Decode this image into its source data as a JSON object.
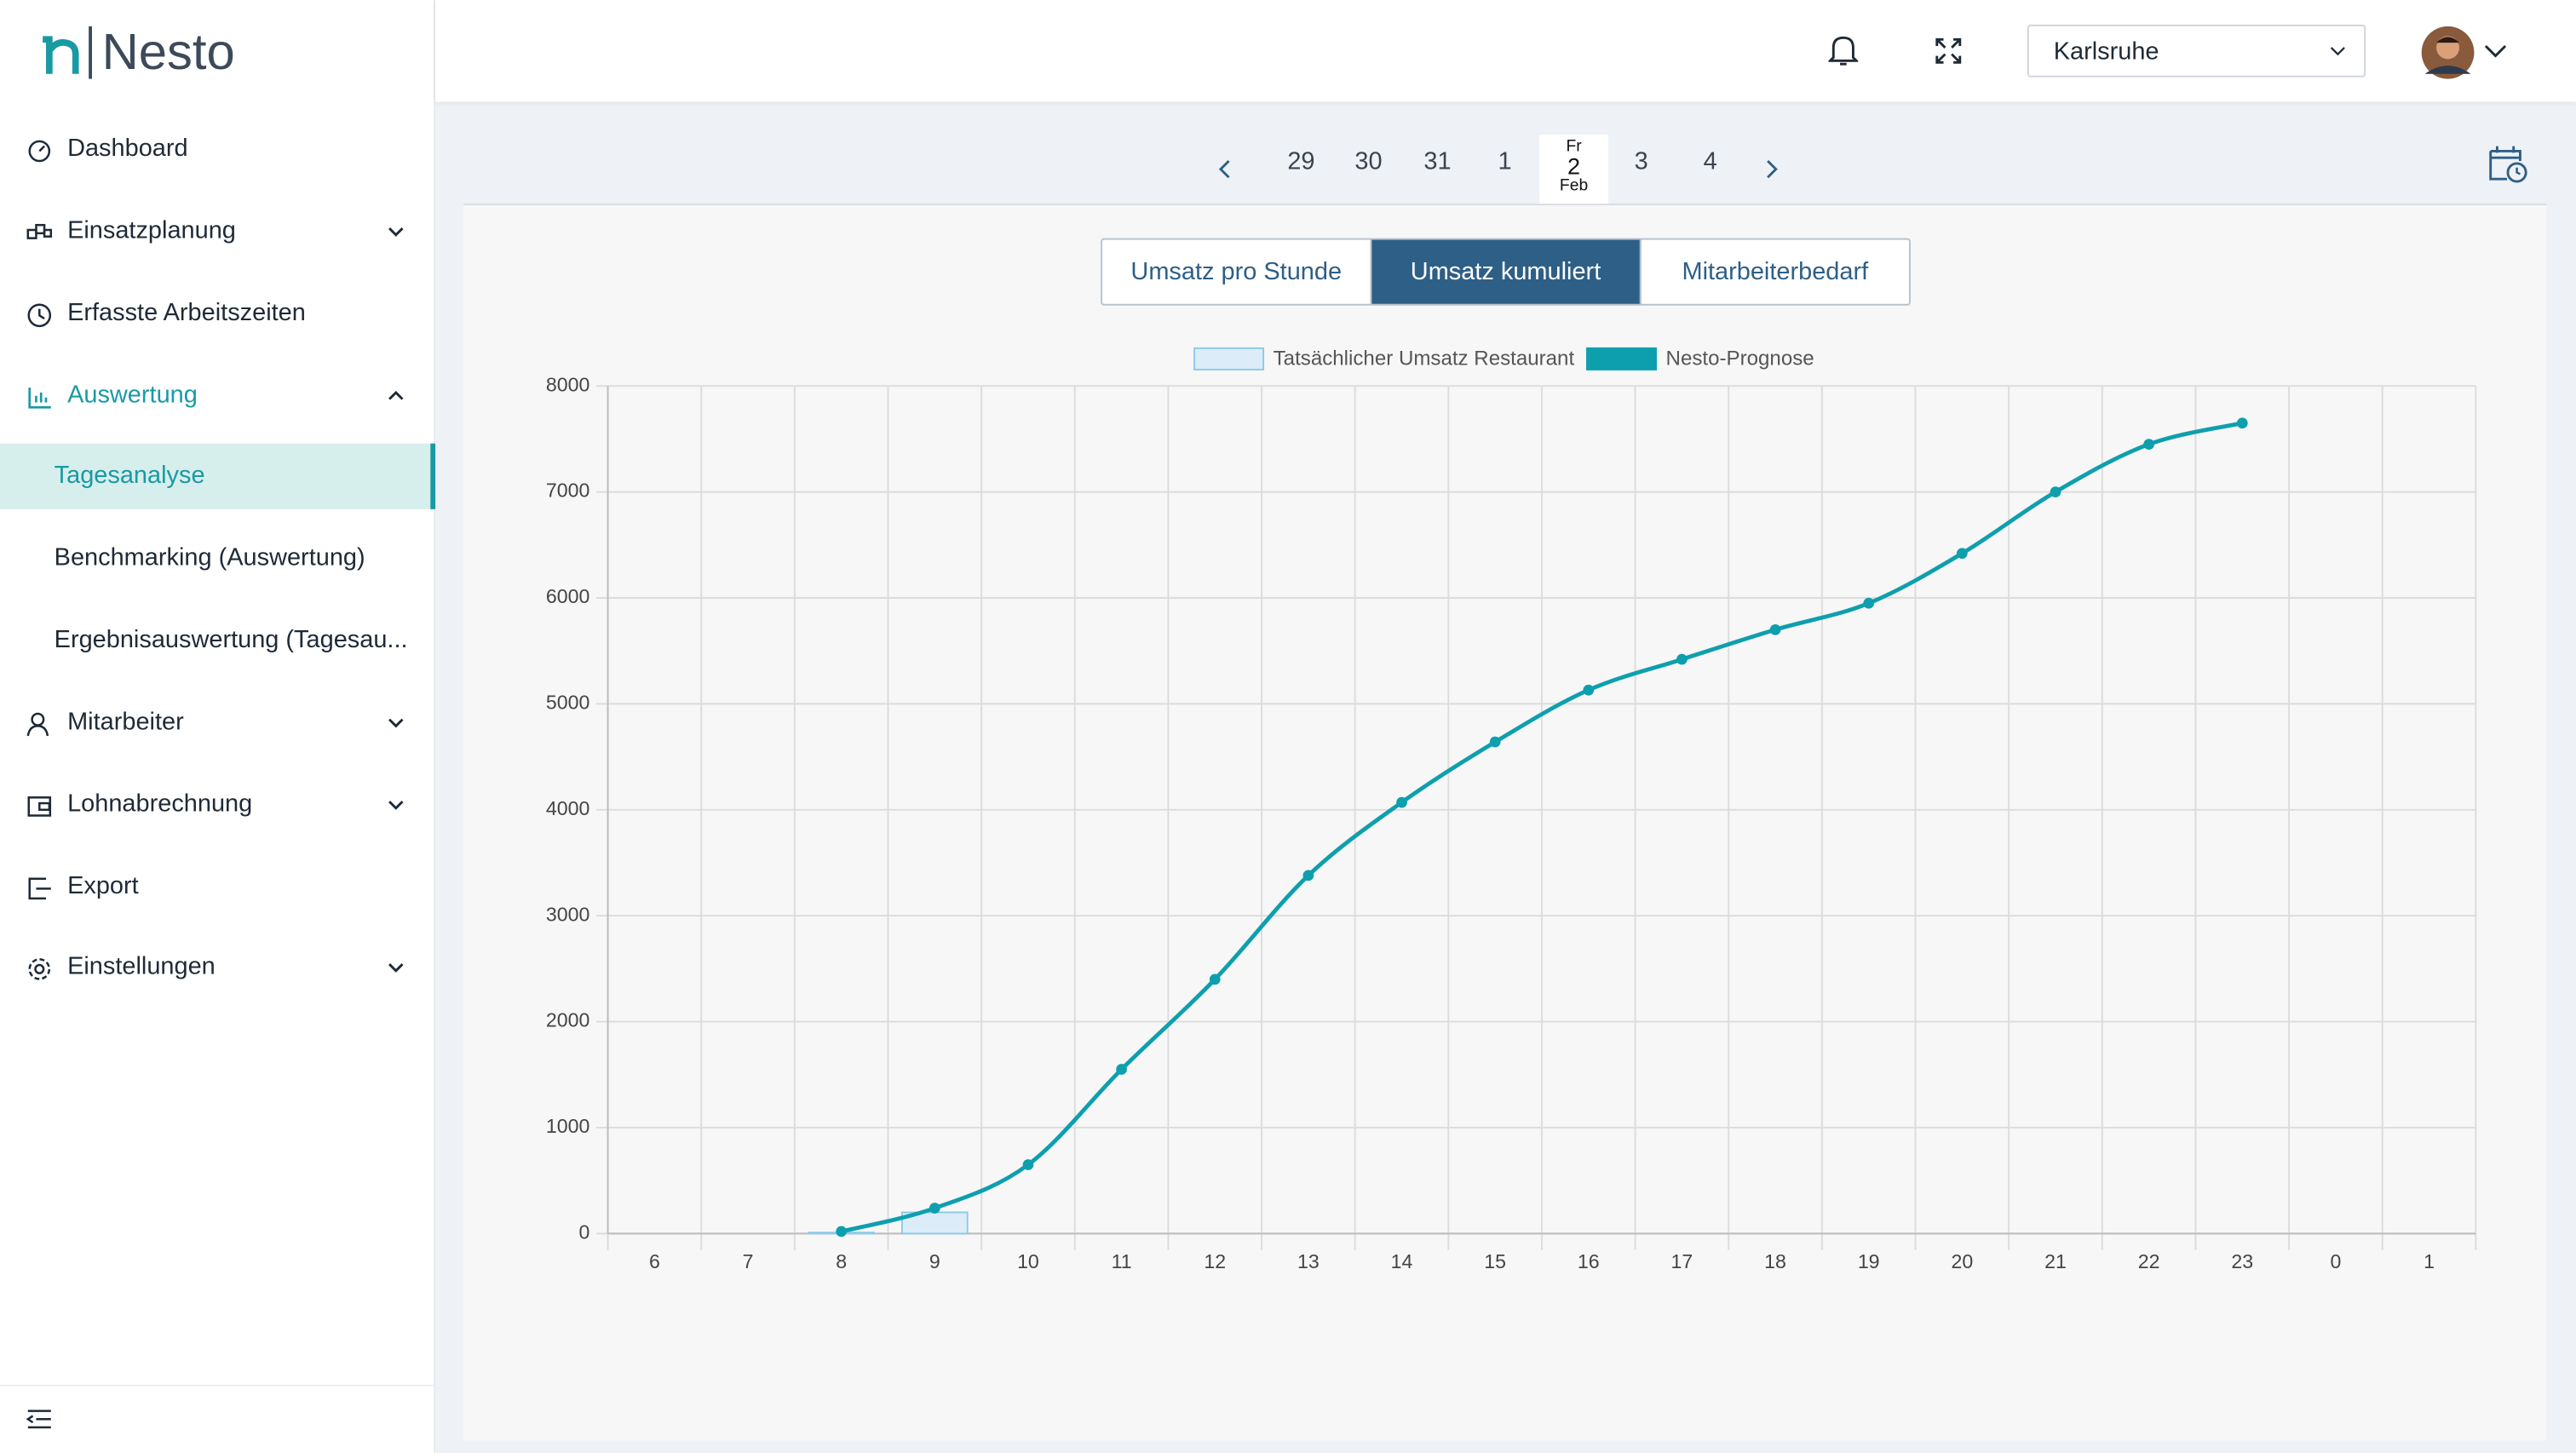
{
  "logo": {
    "text": "Nesto"
  },
  "sidebar": {
    "items": [
      "Dashboard",
      "Einsatzplanung",
      "Erfasste Arbeitszeiten",
      "Auswertung",
      "Tagesanalyse",
      "Benchmarking (Auswertung)",
      "Ergebnisauswertung (Tagesau...",
      "Mitarbeiter",
      "Lohnabrechnung",
      "Export",
      "Einstellungen"
    ]
  },
  "header": {
    "location": "Karlsruhe"
  },
  "date_nav": {
    "before": [
      "29",
      "30",
      "31",
      "1"
    ],
    "selected": {
      "weekday": "Fr",
      "day": "2",
      "month": "Feb"
    },
    "after": [
      "3",
      "4"
    ]
  },
  "tabs": [
    "Umsatz pro Stunde",
    "Umsatz kumuliert",
    "Mitarbeiterbedarf"
  ],
  "chart_data": {
    "type": "line",
    "categories": [
      "6",
      "7",
      "8",
      "9",
      "10",
      "11",
      "12",
      "13",
      "14",
      "15",
      "16",
      "17",
      "18",
      "19",
      "20",
      "21",
      "22",
      "23",
      "0",
      "1"
    ],
    "series": [
      {
        "name": "Tatsächlicher Umsatz Restaurant",
        "type": "bar",
        "color": "#dcedf9",
        "edge_color": "#8ccbe8",
        "values": [
          null,
          null,
          10,
          200,
          null,
          null,
          null,
          null,
          null,
          null,
          null,
          null,
          null,
          null,
          null,
          null,
          null,
          null,
          null,
          null
        ]
      },
      {
        "name": "Nesto-Prognose",
        "type": "line",
        "color": "#0e9fae",
        "values": [
          null,
          null,
          20,
          240,
          650,
          1550,
          2400,
          3380,
          4070,
          4640,
          5130,
          5420,
          5700,
          5950,
          6420,
          7000,
          7450,
          7650,
          null,
          null
        ]
      }
    ],
    "ylim": [
      0,
      8000
    ],
    "yticks": [
      0,
      1000,
      2000,
      3000,
      4000,
      5000,
      6000,
      7000,
      8000
    ],
    "grid": true
  }
}
